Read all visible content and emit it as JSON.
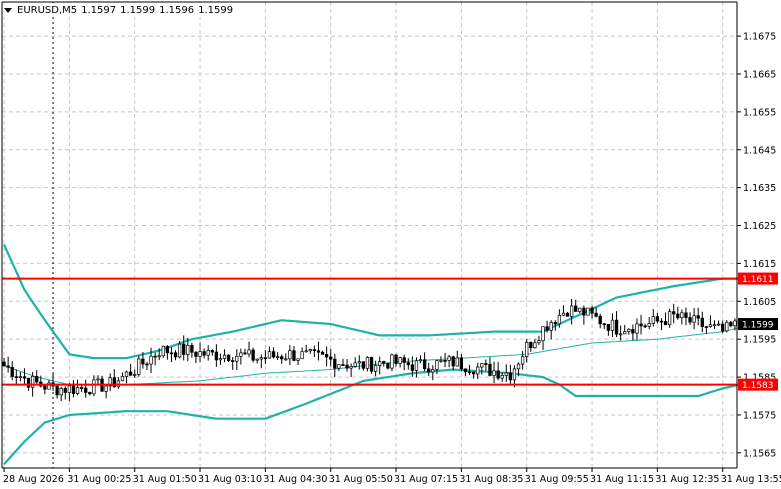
{
  "window": {
    "symbol_timeframe": "EURUSD,M5",
    "ohlc": [
      "1.1597",
      "1.1599",
      "1.1596",
      "1.1599"
    ],
    "background_color": "#ffffff",
    "grid_color": "#c8c8c8",
    "axis_color": "#000000"
  },
  "price_badges": [
    {
      "label": "1.1611",
      "value": 1.1611,
      "bg": "#ff0000",
      "fg": "#ffffff"
    },
    {
      "label": "1.1599",
      "value": 1.1599,
      "bg": "#000000",
      "fg": "#ffffff"
    },
    {
      "label": "1.1583",
      "value": 1.1583,
      "bg": "#ff0000",
      "fg": "#ffffff"
    }
  ],
  "chart_data": {
    "type": "candlestick",
    "symbol": "EURUSD",
    "timeframe": "M5",
    "y_range": [
      1.1561,
      1.1684
    ],
    "y_ticks": [
      "1.1675",
      "1.1665",
      "1.1655",
      "1.1645",
      "1.1635",
      "1.1625",
      "1.1615",
      "1.1605",
      "1.1595",
      "1.1585",
      "1.1575",
      "1.1565"
    ],
    "y_tick_values": [
      1.1675,
      1.1665,
      1.1655,
      1.1645,
      1.1635,
      1.1625,
      1.1615,
      1.1605,
      1.1595,
      1.1585,
      1.1575,
      1.1565
    ],
    "x_ticks": [
      "28 Aug 2026",
      "31 Aug 00:25",
      "31 Aug 01:50",
      "31 Aug 03:10",
      "31 Aug 04:30",
      "31 Aug 05:50",
      "31 Aug 07:15",
      "31 Aug 08:35",
      "31 Aug 09:55",
      "31 Aug 11:15",
      "31 Aug 12:35",
      "31 Aug 13:55"
    ],
    "x_tick_bar_index": [
      0,
      16,
      32,
      48,
      64,
      80,
      96,
      112,
      128,
      144,
      160,
      176
    ],
    "period_separator_bar": 12,
    "bar_count": 180,
    "horizontal_lines": [
      {
        "price": 1.1611,
        "color": "#ff0000"
      },
      {
        "price": 1.1583,
        "color": "#ff0000"
      }
    ],
    "bollinger": {
      "color": "#20b2aa",
      "upper": [
        [
          0,
          1.162
        ],
        [
          5,
          1.1608
        ],
        [
          10,
          1.16
        ],
        [
          16,
          1.1591
        ],
        [
          22,
          1.159
        ],
        [
          30,
          1.159
        ],
        [
          38,
          1.1592
        ],
        [
          46,
          1.1595
        ],
        [
          56,
          1.1597
        ],
        [
          68,
          1.16
        ],
        [
          80,
          1.1599
        ],
        [
          92,
          1.1596
        ],
        [
          104,
          1.1596
        ],
        [
          120,
          1.1597
        ],
        [
          132,
          1.1597
        ],
        [
          140,
          1.1601
        ],
        [
          150,
          1.1606
        ],
        [
          164,
          1.1609
        ],
        [
          176,
          1.1611
        ],
        [
          180,
          1.1611
        ]
      ],
      "middle": [
        [
          0,
          1.1588
        ],
        [
          8,
          1.1585
        ],
        [
          16,
          1.1583
        ],
        [
          30,
          1.1583
        ],
        [
          48,
          1.1584
        ],
        [
          64,
          1.1586
        ],
        [
          80,
          1.1587
        ],
        [
          96,
          1.1589
        ],
        [
          112,
          1.159
        ],
        [
          128,
          1.1591
        ],
        [
          144,
          1.1594
        ],
        [
          160,
          1.1595
        ],
        [
          176,
          1.1597
        ],
        [
          180,
          1.1598
        ]
      ],
      "lower": [
        [
          0,
          1.1562
        ],
        [
          5,
          1.1568
        ],
        [
          10,
          1.1573
        ],
        [
          16,
          1.1575
        ],
        [
          30,
          1.1576
        ],
        [
          40,
          1.1576
        ],
        [
          52,
          1.1574
        ],
        [
          64,
          1.1574
        ],
        [
          74,
          1.1578
        ],
        [
          88,
          1.1584
        ],
        [
          100,
          1.1586
        ],
        [
          110,
          1.1587
        ],
        [
          124,
          1.1586
        ],
        [
          132,
          1.1585
        ],
        [
          136,
          1.1583
        ],
        [
          140,
          1.158
        ],
        [
          150,
          1.158
        ],
        [
          160,
          1.158
        ],
        [
          170,
          1.158
        ],
        [
          176,
          1.1582
        ],
        [
          180,
          1.1583
        ]
      ]
    },
    "price_anchors": [
      [
        0,
        1.1588
      ],
      [
        6,
        1.1584
      ],
      [
        12,
        1.1582
      ],
      [
        18,
        1.1582
      ],
      [
        26,
        1.1583
      ],
      [
        32,
        1.1587
      ],
      [
        38,
        1.1592
      ],
      [
        44,
        1.1592
      ],
      [
        50,
        1.1591
      ],
      [
        56,
        1.1591
      ],
      [
        62,
        1.159
      ],
      [
        70,
        1.1591
      ],
      [
        78,
        1.159
      ],
      [
        86,
        1.1588
      ],
      [
        94,
        1.1589
      ],
      [
        102,
        1.1588
      ],
      [
        110,
        1.1589
      ],
      [
        118,
        1.1587
      ],
      [
        124,
        1.1586
      ],
      [
        128,
        1.1593
      ],
      [
        133,
        1.1599
      ],
      [
        138,
        1.1603
      ],
      [
        142,
        1.1602
      ],
      [
        150,
        1.1598
      ],
      [
        158,
        1.1599
      ],
      [
        164,
        1.1601
      ],
      [
        170,
        1.1599
      ],
      [
        176,
        1.1597
      ],
      [
        180,
        1.1599
      ]
    ]
  }
}
